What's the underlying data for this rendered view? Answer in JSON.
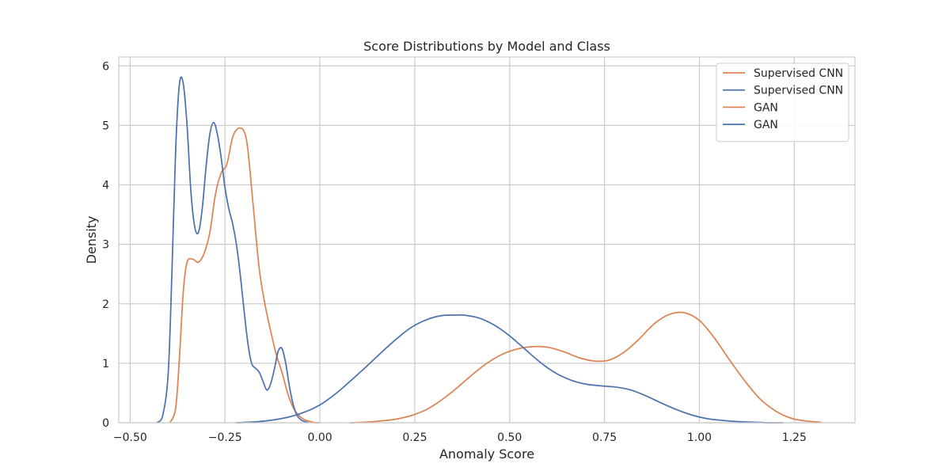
{
  "chart_data": {
    "type": "line",
    "title": "Score Distributions by Model and Class",
    "xlabel": "Anomaly Score",
    "ylabel": "Density",
    "xlim": [
      -0.53,
      1.41
    ],
    "ylim": [
      0,
      6.15
    ],
    "xticks": [
      -0.5,
      -0.25,
      0.0,
      0.25,
      0.5,
      0.75,
      1.0,
      1.25
    ],
    "xtick_labels": [
      "−0.50",
      "−0.25",
      "0.00",
      "0.25",
      "0.50",
      "0.75",
      "1.00",
      "1.25"
    ],
    "yticks": [
      0,
      1,
      2,
      3,
      4,
      5,
      6
    ],
    "ytick_labels": [
      "0",
      "1",
      "2",
      "3",
      "4",
      "5",
      "6"
    ],
    "grid": true,
    "legend_position": "top-right",
    "colors": {
      "orange": "#dd8452",
      "blue": "#4c72b0",
      "grid": "#cccccc",
      "spine": "#cccccc"
    },
    "series": [
      {
        "name": "Supervised CNN",
        "color": "#dd8452",
        "x": [
          -0.395,
          -0.38,
          -0.37,
          -0.36,
          -0.35,
          -0.335,
          -0.32,
          -0.305,
          -0.29,
          -0.275,
          -0.26,
          -0.245,
          -0.23,
          -0.215,
          -0.2,
          -0.19,
          -0.175,
          -0.16,
          -0.145,
          -0.13,
          -0.115,
          -0.1,
          -0.085,
          -0.07,
          -0.055,
          -0.04,
          -0.025,
          -0.01,
          0.0
        ],
        "y": [
          0.0,
          0.25,
          1.1,
          2.2,
          2.7,
          2.75,
          2.7,
          2.85,
          3.2,
          3.85,
          4.2,
          4.35,
          4.8,
          4.95,
          4.9,
          4.6,
          3.6,
          2.6,
          2.0,
          1.55,
          1.15,
          0.85,
          0.5,
          0.25,
          0.12,
          0.05,
          0.02,
          0.0,
          0.0
        ]
      },
      {
        "name": "Supervised CNN",
        "color": "#4c72b0",
        "x": [
          -0.43,
          -0.415,
          -0.4,
          -0.39,
          -0.38,
          -0.37,
          -0.36,
          -0.35,
          -0.34,
          -0.33,
          -0.32,
          -0.31,
          -0.3,
          -0.29,
          -0.28,
          -0.27,
          -0.26,
          -0.25,
          -0.24,
          -0.23,
          -0.22,
          -0.21,
          -0.2,
          -0.19,
          -0.18,
          -0.17,
          -0.16,
          -0.15,
          -0.14,
          -0.13,
          -0.12,
          -0.11,
          -0.1,
          -0.09,
          -0.08,
          -0.07,
          -0.06,
          -0.05,
          -0.04,
          -0.03
        ],
        "y": [
          0.0,
          0.1,
          0.8,
          2.5,
          4.6,
          5.7,
          5.7,
          5.0,
          3.9,
          3.3,
          3.2,
          3.6,
          4.3,
          4.85,
          5.05,
          4.85,
          4.45,
          3.95,
          3.6,
          3.35,
          3.0,
          2.5,
          1.9,
          1.35,
          1.0,
          0.92,
          0.85,
          0.7,
          0.55,
          0.65,
          0.9,
          1.2,
          1.25,
          1.0,
          0.6,
          0.3,
          0.12,
          0.05,
          0.02,
          0.0
        ]
      },
      {
        "name": "GAN",
        "color": "#dd8452",
        "x": [
          0.08,
          0.12,
          0.16,
          0.2,
          0.24,
          0.28,
          0.32,
          0.36,
          0.4,
          0.44,
          0.48,
          0.52,
          0.56,
          0.6,
          0.64,
          0.68,
          0.72,
          0.76,
          0.8,
          0.84,
          0.88,
          0.92,
          0.96,
          1.0,
          1.04,
          1.08,
          1.12,
          1.16,
          1.2,
          1.24,
          1.28,
          1.32
        ],
        "y": [
          0.0,
          0.01,
          0.03,
          0.06,
          0.12,
          0.22,
          0.38,
          0.58,
          0.8,
          1.0,
          1.15,
          1.24,
          1.28,
          1.27,
          1.2,
          1.1,
          1.04,
          1.05,
          1.18,
          1.4,
          1.66,
          1.82,
          1.85,
          1.72,
          1.42,
          1.05,
          0.7,
          0.4,
          0.2,
          0.08,
          0.03,
          0.01
        ]
      },
      {
        "name": "GAN",
        "color": "#4c72b0",
        "x": [
          -0.22,
          -0.16,
          -0.12,
          -0.08,
          -0.04,
          0.0,
          0.04,
          0.08,
          0.12,
          0.16,
          0.2,
          0.24,
          0.28,
          0.32,
          0.36,
          0.38,
          0.42,
          0.46,
          0.5,
          0.54,
          0.58,
          0.62,
          0.66,
          0.7,
          0.74,
          0.78,
          0.82,
          0.86,
          0.9,
          0.94,
          0.98,
          1.02,
          1.06,
          1.1,
          1.14,
          1.18,
          1.22
        ],
        "y": [
          0.0,
          0.02,
          0.05,
          0.1,
          0.18,
          0.3,
          0.48,
          0.7,
          0.93,
          1.17,
          1.4,
          1.6,
          1.73,
          1.8,
          1.81,
          1.81,
          1.76,
          1.64,
          1.46,
          1.24,
          1.02,
          0.84,
          0.72,
          0.65,
          0.62,
          0.6,
          0.55,
          0.45,
          0.33,
          0.22,
          0.13,
          0.07,
          0.04,
          0.02,
          0.01,
          0.0,
          0.0
        ]
      }
    ]
  }
}
